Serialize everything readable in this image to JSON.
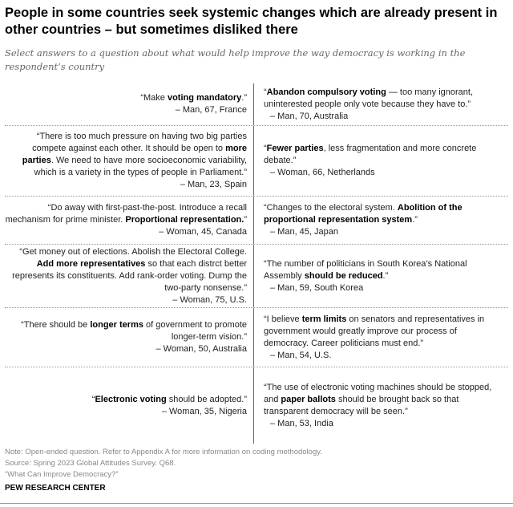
{
  "title": "People in some countries seek systemic changes which are already present in other countries – but sometimes disliked there",
  "subtitle": "Select answers to a question about what would help improve the way democracy is working in the respondent’s country",
  "rows": [
    {
      "left": {
        "quote": [
          {
            "t": "“Make "
          },
          {
            "t": "voting mandatory",
            "b": true
          },
          {
            "t": ".”"
          }
        ],
        "attribution": "– Man, 67, France"
      },
      "right": {
        "quote": [
          {
            "t": "“"
          },
          {
            "t": "Abandon compulsory voting",
            "b": true
          },
          {
            "t": " — too many ignorant, uninterested people only vote because they have to.”"
          }
        ],
        "attribution": "– Man, 70, Australia"
      }
    },
    {
      "left": {
        "quote": [
          {
            "t": "“There is too much pressure on having two big parties compete against each other. It should be open to "
          },
          {
            "t": "more parties",
            "b": true
          },
          {
            "t": ". We need to have more socioeconomic variability, which is a variety in the types of people in Parliament.”"
          }
        ],
        "attribution": "– Man, 23, Spain"
      },
      "right": {
        "quote": [
          {
            "t": "“"
          },
          {
            "t": "Fewer parties",
            "b": true
          },
          {
            "t": ", less fragmentation and more concrete debate.”"
          }
        ],
        "attribution": "– Woman, 66, Netherlands"
      }
    },
    {
      "left": {
        "quote": [
          {
            "t": "“Do away with first-past-the-post. Introduce a recall mechanism for prime minister. "
          },
          {
            "t": "Proportional representation.",
            "b": true
          },
          {
            "t": "”"
          }
        ],
        "attribution": "– Woman, 45, Canada"
      },
      "right": {
        "quote": [
          {
            "t": "“Changes to the electoral system. "
          },
          {
            "t": "Abolition of the proportional representation system",
            "b": true
          },
          {
            "t": ".”"
          }
        ],
        "attribution": "– Man, 45, Japan"
      }
    },
    {
      "left": {
        "quote": [
          {
            "t": "“Get money out of elections. Abolish the Electoral College. "
          },
          {
            "t": "Add more representatives",
            "b": true
          },
          {
            "t": " so that each distrct better represents its constituents. Add rank-order voting. Dump the two-party nonsense.”"
          }
        ],
        "attribution": "– Woman, 75, U.S."
      },
      "right": {
        "quote": [
          {
            "t": "“The number of politicians in South Korea’s National Assembly "
          },
          {
            "t": "should be reduced",
            "b": true
          },
          {
            "t": ".”"
          }
        ],
        "attribution": "– Man, 59, South Korea"
      }
    },
    {
      "left": {
        "quote": [
          {
            "t": "“There should be "
          },
          {
            "t": "longer terms",
            "b": true
          },
          {
            "t": " of government to promote longer-term vision.”"
          }
        ],
        "attribution": "– Woman, 50, Australia"
      },
      "right": {
        "quote": [
          {
            "t": "“I believe "
          },
          {
            "t": "term limits",
            "b": true
          },
          {
            "t": " on senators and representatives in government would greatly improve our process of democracy. Career politicians must end.”"
          }
        ],
        "attribution": "– Man, 54, U.S."
      }
    },
    {
      "left": {
        "quote": [
          {
            "t": "“"
          },
          {
            "t": "Electronic voting",
            "b": true
          },
          {
            "t": " should be adopted.”"
          }
        ],
        "attribution": "– Woman, 35, Nigeria"
      },
      "right": {
        "quote": [
          {
            "t": "“The use of electronic voting machines should be stopped, and "
          },
          {
            "t": "paper ballots",
            "b": true
          },
          {
            "t": " should be brought back so that transparent democracy will be seen.”"
          }
        ],
        "attribution": "– Man, 53, India"
      }
    }
  ],
  "note": "Note: Open-ended question. Refer to Appendix A for more information on coding methodology.",
  "source": "Source: Spring 2023 Global Attitudes Survey. Q68.",
  "report": "“What Can Improve Democracy?”",
  "brand": "PEW RESEARCH CENTER"
}
